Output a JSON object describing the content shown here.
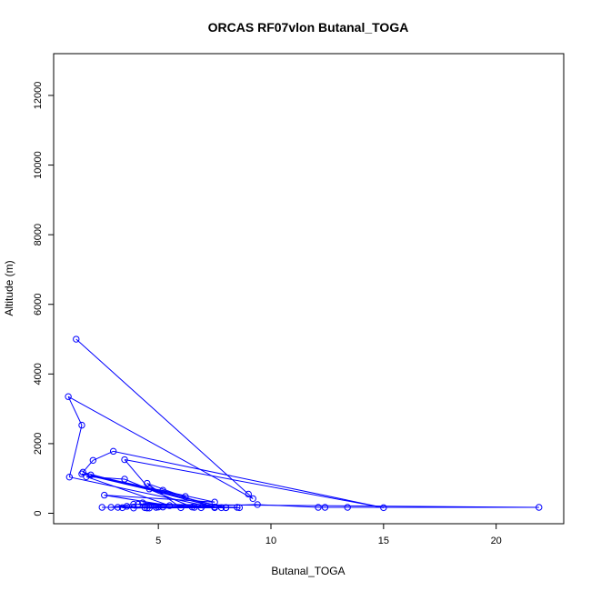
{
  "chart_data": {
    "type": "line",
    "title": "ORCAS RF07vlon Butanal_TOGA",
    "xlabel": "Butanal_TOGA",
    "ylabel": "Altitude (m)",
    "xlim": [
      0.35,
      23.0
    ],
    "ylim": [
      -300,
      13200
    ],
    "xticks": [
      5,
      10,
      15,
      20
    ],
    "yticks": [
      0,
      2000,
      4000,
      6000,
      8000,
      10000,
      12000
    ],
    "grid": false,
    "line_color": "#0000ff",
    "marker": "open-circle",
    "series": [
      {
        "x": [
          1.35,
          9.0,
          9.2,
          1.0,
          1.6,
          1.05,
          7.0,
          7.5,
          1.65,
          2.1,
          3.0,
          15.0,
          3.5,
          4.6,
          5.2,
          6.2,
          1.6,
          8.0,
          2.0,
          7.5,
          2.6,
          5.5,
          1.8,
          3.5,
          6.5,
          2.5,
          7.5,
          4.5,
          6.0,
          3.9,
          2.9,
          3.6,
          4.4,
          4.5,
          8.5,
          8.0,
          4.3,
          6.6,
          3.9,
          9.4,
          12.1,
          12.4,
          13.4,
          21.9,
          4.1,
          7.8,
          4.9,
          8.6,
          3.4,
          5.2,
          6.9,
          4.6,
          5.0,
          3.2
        ],
        "y": [
          5000,
          550,
          420,
          3350,
          2530,
          1040,
          230,
          180,
          1180,
          1520,
          1780,
          160,
          1540,
          700,
          660,
          480,
          1130,
          160,
          1100,
          320,
          520,
          220,
          1050,
          980,
          180,
          170,
          160,
          860,
          160,
          260,
          170,
          200,
          160,
          150,
          170,
          160,
          300,
          170,
          150,
          250,
          170,
          170,
          170,
          170,
          260,
          160,
          170,
          160,
          160,
          180,
          160,
          150,
          180,
          170
        ]
      }
    ]
  }
}
